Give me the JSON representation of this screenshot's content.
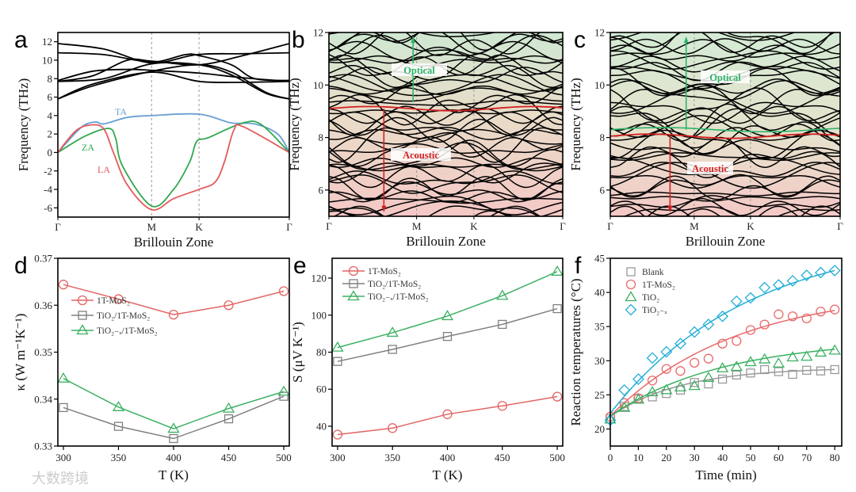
{
  "watermark": "大数跨境",
  "chart_data": [
    {
      "panel": "a",
      "type": "line",
      "xlabel": "Brillouin Zone",
      "ylabel": "Frequency (THz)",
      "xticks": [
        "Γ",
        "M",
        "K",
        "Γ"
      ],
      "xtick_pos": [
        0,
        0.405,
        0.61,
        1
      ],
      "ylim": [
        -7,
        13
      ],
      "yticks": [
        -6,
        -4,
        -2,
        0,
        2,
        4,
        6,
        8,
        10,
        12
      ],
      "branch_labels": {
        "TA": "TA",
        "ZA": "ZA",
        "LA": "LA"
      },
      "colors": {
        "TA": "#6a9fd4",
        "ZA": "#2fa84f",
        "LA": "#e35a5a",
        "optical": "#000000"
      },
      "acoustic": {
        "TA": [
          [
            0,
            0
          ],
          [
            0.1,
            2.7
          ],
          [
            0.16,
            3.3
          ],
          [
            0.2,
            3.1
          ],
          [
            0.3,
            3.8
          ],
          [
            0.405,
            4.0
          ],
          [
            0.61,
            4.15
          ],
          [
            0.75,
            3.2
          ],
          [
            0.85,
            3.1
          ],
          [
            0.95,
            2
          ],
          [
            1,
            0
          ]
        ],
        "ZA": [
          [
            0,
            0
          ],
          [
            0.12,
            1.8
          ],
          [
            0.22,
            2.6
          ],
          [
            0.25,
            1.5
          ],
          [
            0.28,
            -1.5
          ],
          [
            0.405,
            -5.8
          ],
          [
            0.5,
            -4
          ],
          [
            0.57,
            -1
          ],
          [
            0.6,
            1.2
          ],
          [
            0.65,
            1.6
          ],
          [
            0.8,
            3.2
          ],
          [
            0.88,
            3.0
          ],
          [
            1,
            0
          ]
        ],
        "LA": [
          [
            0,
            0
          ],
          [
            0.08,
            2.4
          ],
          [
            0.15,
            3.0
          ],
          [
            0.2,
            2.5
          ],
          [
            0.24,
            0
          ],
          [
            0.3,
            -3.5
          ],
          [
            0.405,
            -6.2
          ],
          [
            0.5,
            -5
          ],
          [
            0.61,
            -4
          ],
          [
            0.68,
            -3.2
          ],
          [
            0.72,
            -1
          ],
          [
            0.76,
            2.4
          ],
          [
            0.8,
            2.8
          ],
          [
            1,
            0
          ]
        ]
      },
      "optical": [
        [
          [
            0,
            11.8
          ],
          [
            0.2,
            11.2
          ],
          [
            0.405,
            9.7
          ],
          [
            0.6,
            10.6
          ],
          [
            0.8,
            10.7
          ],
          [
            1,
            10.8
          ]
        ],
        [
          [
            0,
            10.8
          ],
          [
            0.2,
            10.6
          ],
          [
            0.405,
            9.8
          ],
          [
            0.55,
            10.6
          ],
          [
            0.61,
            10.5
          ],
          [
            0.75,
            9.5
          ],
          [
            0.85,
            8
          ],
          [
            1,
            7.8
          ]
        ],
        [
          [
            0,
            7.7
          ],
          [
            0.15,
            8.3
          ],
          [
            0.3,
            10
          ],
          [
            0.405,
            9.9
          ],
          [
            0.61,
            9.5
          ],
          [
            0.8,
            10.5
          ],
          [
            1,
            11.8
          ]
        ],
        [
          [
            0,
            7.8
          ],
          [
            0.15,
            8.8
          ],
          [
            0.3,
            9.0
          ],
          [
            0.405,
            8.9
          ],
          [
            0.61,
            8.6
          ],
          [
            0.8,
            8.1
          ],
          [
            1,
            7.7
          ]
        ],
        [
          [
            0,
            5.8
          ],
          [
            0.15,
            7.2
          ],
          [
            0.405,
            8.8
          ],
          [
            0.61,
            9.5
          ],
          [
            0.75,
            8.7
          ],
          [
            0.9,
            6.5
          ],
          [
            1,
            5.8
          ]
        ],
        [
          [
            0,
            5.8
          ],
          [
            0.15,
            7.4
          ],
          [
            0.405,
            8.7
          ],
          [
            0.61,
            7.7
          ],
          [
            0.8,
            7.6
          ],
          [
            1,
            7.7
          ]
        ],
        [
          [
            0,
            7.7
          ],
          [
            0.2,
            8.0
          ],
          [
            0.405,
            9.6
          ],
          [
            0.61,
            9.5
          ],
          [
            0.75,
            8.4
          ],
          [
            0.9,
            6.4
          ],
          [
            1,
            5.8
          ]
        ]
      ]
    },
    {
      "panel": "b",
      "type": "line",
      "xlabel": "Brillouin Zone",
      "ylabel": "Frequency (THz)",
      "xticks": [
        "Γ",
        "M",
        "K",
        "Γ"
      ],
      "xtick_pos": [
        0,
        0.375,
        0.62,
        1
      ],
      "ylim": [
        5,
        12
      ],
      "yticks": [
        6,
        8,
        10,
        12
      ],
      "divider": 9.1,
      "optical_label": "Optical",
      "acoustic_label": "Acoustic",
      "colors": {
        "optical": "#2fb36a",
        "acoustic": "#d42020",
        "top_bg": "#cfe8d2",
        "bottom_bg": "#f4c8c6"
      }
    },
    {
      "panel": "c",
      "type": "line",
      "xlabel": "Brillouin Zone",
      "ylabel": "Frequency (THz)",
      "xticks": [
        "Γ",
        "M",
        "K",
        "Γ"
      ],
      "xtick_pos": [
        0,
        0.365,
        0.61,
        1
      ],
      "ylim": [
        5,
        12
      ],
      "yticks": [
        6,
        8,
        10,
        12
      ],
      "divider": 8.05,
      "optical_label": "Optical",
      "acoustic_label": "Acoustic",
      "colors": {
        "optical": "#2fb36a",
        "acoustic": "#d42020",
        "top_bg": "#d4ebd5",
        "bottom_bg": "#f4c8c6"
      }
    },
    {
      "panel": "d",
      "type": "line",
      "xlabel": "T (K)",
      "ylabel": "κ (W m⁻¹K⁻¹)",
      "x": [
        300,
        350,
        400,
        450,
        500
      ],
      "xlim": [
        295,
        505
      ],
      "ylim": [
        0.33,
        0.37
      ],
      "yticks": [
        0.33,
        0.34,
        0.35,
        0.36,
        0.37
      ],
      "ytick_labels": [
        "0.33",
        "0.34",
        "0.35",
        "0.36",
        "0.37"
      ],
      "xticks": [
        300,
        350,
        400,
        450,
        500
      ],
      "legend": "center-left",
      "series": [
        {
          "name": "1T-MoS₂",
          "marker": "circle",
          "color": "#e36464",
          "values": [
            0.3644,
            0.3613,
            0.358,
            0.36,
            0.363
          ]
        },
        {
          "name": "TiO₂/1T-MoS₂",
          "marker": "square",
          "color": "#808080",
          "values": [
            0.3382,
            0.3342,
            0.3316,
            0.3358,
            0.3406
          ]
        },
        {
          "name": "TiO₂₋ₓ/1T-MoS₂",
          "marker": "triangle",
          "color": "#3cb062",
          "values": [
            0.3444,
            0.3383,
            0.3337,
            0.338,
            0.3416
          ]
        }
      ]
    },
    {
      "panel": "e",
      "type": "line",
      "xlabel": "T (K)",
      "ylabel": "S (μV K⁻¹)",
      "x": [
        300,
        350,
        400,
        450,
        500
      ],
      "xlim": [
        295,
        505
      ],
      "ylim": [
        29.3,
        130.7
      ],
      "yticks": [
        40,
        60,
        80,
        100,
        120
      ],
      "ytick_labels": [
        "40",
        "60",
        "80",
        "100",
        "120"
      ],
      "xticks": [
        300,
        350,
        400,
        450,
        500
      ],
      "legend": "top-left",
      "series": [
        {
          "name": "1T-MoS₂",
          "marker": "circle",
          "color": "#e36464",
          "values": [
            35.5,
            39,
            46.5,
            51,
            56
          ]
        },
        {
          "name": "TiO₂/1T-MoS₂",
          "marker": "square",
          "color": "#808080",
          "values": [
            75,
            81.5,
            88.5,
            95,
            103.5
          ]
        },
        {
          "name": "TiO₂₋ₓ/1T-MoS₂",
          "marker": "triangle",
          "color": "#3cb062",
          "values": [
            82.5,
            90.5,
            99.5,
            110.5,
            123.5
          ]
        }
      ]
    },
    {
      "panel": "f",
      "type": "scatter",
      "xlabel": "Time (min)",
      "ylabel": "Reaction temperatures (°C)",
      "x": [
        0,
        5,
        10,
        15,
        20,
        25,
        30,
        35,
        40,
        45,
        50,
        55,
        60,
        65,
        70,
        75,
        80
      ],
      "xlim": [
        0,
        82.5
      ],
      "ylim": [
        17.5,
        45
      ],
      "yticks": [
        20,
        25,
        30,
        35,
        40,
        45
      ],
      "ytick_labels": [
        "20",
        "25",
        "30",
        "35",
        "40",
        "45"
      ],
      "xticks": [
        0,
        10,
        20,
        30,
        40,
        50,
        60,
        70,
        80
      ],
      "legend": "top-left",
      "series": [
        {
          "name": "Blank",
          "marker": "square",
          "color": "#9a9a9a",
          "fit": [
            29.0,
            7.2,
            25
          ],
          "values": [
            21.5,
            23.3,
            24.4,
            24.7,
            25.2,
            25.7,
            26.8,
            26.6,
            27.3,
            27.9,
            28.2,
            28.7,
            28.4,
            28.0,
            28.6,
            28.5,
            28.7
          ]
        },
        {
          "name": "1T-MoS₂",
          "marker": "circle",
          "color": "#e86a6a",
          "fit": [
            40.5,
            18.6,
            45
          ],
          "values": [
            21.8,
            23.8,
            24.5,
            27.1,
            28.8,
            28.5,
            29.7,
            30.3,
            32.5,
            32.9,
            34.5,
            35.3,
            36.8,
            36.5,
            36.2,
            37.2,
            37.5
          ]
        },
        {
          "name": "TiO₂",
          "marker": "triangle",
          "color": "#3cb062",
          "fit": [
            33.2,
            11.3,
            40
          ],
          "values": [
            21.4,
            23.1,
            24.3,
            25.4,
            25.7,
            26.1,
            26.3,
            27.5,
            28.9,
            29.1,
            29.8,
            30.2,
            29.6,
            30.5,
            30.6,
            31.2,
            31.5
          ]
        },
        {
          "name": "TiO₂₋ₓ",
          "marker": "diamond",
          "color": "#23aed6",
          "fit": [
            48.5,
            26.2,
            50
          ],
          "values": [
            21.3,
            25.7,
            27.3,
            30.4,
            31.3,
            32.5,
            34.2,
            35.3,
            36.5,
            38.7,
            39.2,
            40.7,
            41.1,
            41.7,
            42.5,
            42.9,
            43.2
          ]
        }
      ]
    }
  ]
}
